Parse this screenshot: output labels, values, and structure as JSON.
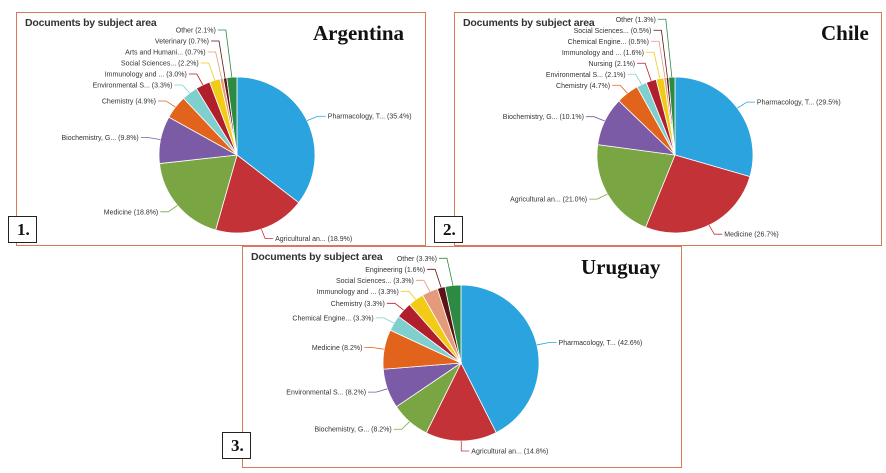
{
  "chart_data": [
    {
      "type": "pie",
      "title": "Documents by subject area",
      "country": "Argentina",
      "panel_number": "1.",
      "slices": [
        {
          "label": "Pharmacology, T...",
          "value": 35.4,
          "display": "(35.4%)",
          "color": "#2aa3de"
        },
        {
          "label": "Agricultural an...",
          "value": 18.9,
          "display": "(18.9%)",
          "color": "#c23237"
        },
        {
          "label": "Medicine",
          "value": 18.8,
          "display": "(18.8%)",
          "color": "#7aa543"
        },
        {
          "label": "Biochemistry, G...",
          "value": 9.8,
          "display": "(9.8%)",
          "color": "#7b5aa6"
        },
        {
          "label": "Chemistry",
          "value": 4.9,
          "display": "(4.9%)",
          "color": "#e2641c"
        },
        {
          "label": "Environmental S...",
          "value": 3.3,
          "display": "(3.3%)",
          "color": "#7fcfcf"
        },
        {
          "label": "Immunology and ...",
          "value": 3.0,
          "display": "(3.0%)",
          "color": "#b11f2d"
        },
        {
          "label": "Social Sciences...",
          "value": 2.2,
          "display": "(2.2%)",
          "color": "#f1cb16"
        },
        {
          "label": "Arts and Humani...",
          "value": 0.7,
          "display": "(0.7%)",
          "color": "#e59a7b"
        },
        {
          "label": "Veterinary",
          "value": 0.7,
          "display": "(0.7%)",
          "color": "#5a1414"
        },
        {
          "label": "Other",
          "value": 2.1,
          "display": "(2.1%)",
          "color": "#2d8a42"
        }
      ]
    },
    {
      "type": "pie",
      "title": "Documents by subject area",
      "country": "Chile",
      "panel_number": "2.",
      "slices": [
        {
          "label": "Pharmacology, T...",
          "value": 29.5,
          "display": "(29.5%)",
          "color": "#2aa3de"
        },
        {
          "label": "Medicine",
          "value": 26.7,
          "display": "(26.7%)",
          "color": "#c23237"
        },
        {
          "label": "Agricultural an...",
          "value": 21.0,
          "display": "(21.0%)",
          "color": "#7aa543"
        },
        {
          "label": "Biochemistry, G...",
          "value": 10.1,
          "display": "(10.1%)",
          "color": "#7b5aa6"
        },
        {
          "label": "Chemistry",
          "value": 4.7,
          "display": "(4.7%)",
          "color": "#e2641c"
        },
        {
          "label": "Environmental S...",
          "value": 2.1,
          "display": "(2.1%)",
          "color": "#7fcfcf"
        },
        {
          "label": "Nursing",
          "value": 2.1,
          "display": "(2.1%)",
          "color": "#b11f2d"
        },
        {
          "label": "Immunology and ...",
          "value": 1.6,
          "display": "(1.6%)",
          "color": "#f1cb16"
        },
        {
          "label": "Chemical Engine...",
          "value": 0.5,
          "display": "(0.5%)",
          "color": "#e59a7b"
        },
        {
          "label": "Social Sciences...",
          "value": 0.5,
          "display": "(0.5%)",
          "color": "#5a1414"
        },
        {
          "label": "Other",
          "value": 1.3,
          "display": "(1.3%)",
          "color": "#2d8a42"
        }
      ]
    },
    {
      "type": "pie",
      "title": "Documents by subject area",
      "country": "Uruguay",
      "panel_number": "3.",
      "slices": [
        {
          "label": "Pharmacology, T...",
          "value": 42.6,
          "display": "(42.6%)",
          "color": "#2aa3de"
        },
        {
          "label": "Agricultural an...",
          "value": 14.8,
          "display": "(14.8%)",
          "color": "#c23237"
        },
        {
          "label": "Biochemistry, G...",
          "value": 8.2,
          "display": "(8.2%)",
          "color": "#7aa543"
        },
        {
          "label": "Environmental S...",
          "value": 8.2,
          "display": "(8.2%)",
          "color": "#7b5aa6"
        },
        {
          "label": "Medicine",
          "value": 8.2,
          "display": "(8.2%)",
          "color": "#e2641c"
        },
        {
          "label": "Chemical Engine...",
          "value": 3.3,
          "display": "(3.3%)",
          "color": "#7fcfcf"
        },
        {
          "label": "Chemistry",
          "value": 3.3,
          "display": "(3.3%)",
          "color": "#b11f2d"
        },
        {
          "label": "Immunology and ...",
          "value": 3.3,
          "display": "(3.3%)",
          "color": "#f1cb16"
        },
        {
          "label": "Social Sciences...",
          "value": 3.3,
          "display": "(3.3%)",
          "color": "#e59a7b"
        },
        {
          "label": "Engineering",
          "value": 1.6,
          "display": "(1.6%)",
          "color": "#5a1414"
        },
        {
          "label": "Other",
          "value": 3.3,
          "display": "(3.3%)",
          "color": "#2d8a42"
        }
      ]
    }
  ]
}
